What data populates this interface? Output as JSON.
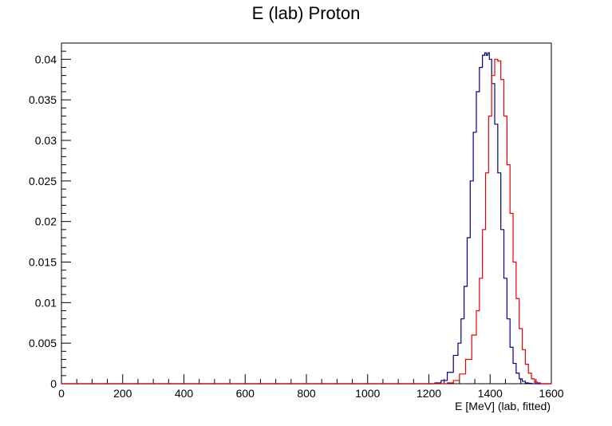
{
  "chart_data": {
    "type": "histogram",
    "title": "E (lab) Proton",
    "xlabel": "E [MeV] (lab, fitted)",
    "ylabel": "",
    "xlim": [
      0,
      1600
    ],
    "ylim": [
      0,
      0.042
    ],
    "x_ticks": [
      0,
      200,
      400,
      600,
      800,
      1000,
      1200,
      1400,
      1600
    ],
    "y_ticks": [
      0,
      0.005,
      0.01,
      0.015,
      0.02,
      0.025,
      0.03,
      0.035,
      0.04
    ],
    "y_tick_labels": [
      "0",
      "0.005",
      "0.01",
      "0.015",
      "0.02",
      "0.025",
      "0.03",
      "0.035",
      "0.04"
    ],
    "grid": false,
    "legend": "none",
    "series": [
      {
        "color": "#000080",
        "bin_centers": [
          1230,
          1250,
          1270,
          1290,
          1300,
          1310,
          1320,
          1330,
          1340,
          1350,
          1360,
          1370,
          1380,
          1385,
          1390,
          1395,
          1400,
          1410,
          1420,
          1430,
          1440,
          1450,
          1460,
          1470,
          1480,
          1490,
          1500,
          1510,
          1520,
          1530
        ],
        "values": [
          0.0001,
          0.0004,
          0.0014,
          0.0035,
          0.005,
          0.008,
          0.012,
          0.018,
          0.025,
          0.031,
          0.036,
          0.039,
          0.0405,
          0.0408,
          0.0405,
          0.0408,
          0.04,
          0.037,
          0.032,
          0.026,
          0.019,
          0.013,
          0.008,
          0.0045,
          0.0025,
          0.0013,
          0.0006,
          0.0003,
          0.0001,
          5e-05
        ]
      },
      {
        "color": "#e60000",
        "bin_centers": [
          1270,
          1290,
          1310,
          1330,
          1350,
          1360,
          1370,
          1380,
          1390,
          1400,
          1410,
          1420,
          1430,
          1440,
          1450,
          1460,
          1470,
          1480,
          1490,
          1500,
          1510,
          1520,
          1530,
          1540,
          1550,
          1560
        ],
        "values": [
          0.0001,
          0.0004,
          0.0012,
          0.003,
          0.006,
          0.009,
          0.013,
          0.019,
          0.026,
          0.033,
          0.038,
          0.04,
          0.0398,
          0.0375,
          0.033,
          0.027,
          0.021,
          0.015,
          0.0105,
          0.0068,
          0.0042,
          0.0024,
          0.0013,
          0.0006,
          0.0002,
          0.0001
        ]
      }
    ]
  }
}
